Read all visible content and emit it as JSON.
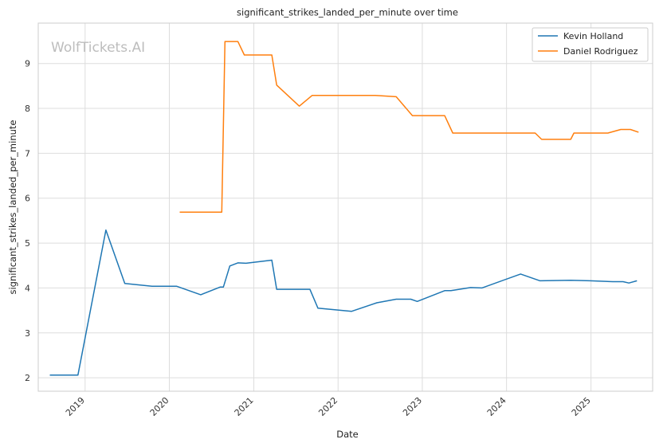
{
  "chart_data": {
    "type": "line",
    "title": "significant_strikes_landed_per_minute over time",
    "xlabel": "Date",
    "ylabel": "significant_strikes_landed_per_minute",
    "watermark": "WolfTickets.AI",
    "x_ticks": [
      "2019",
      "2020",
      "2021",
      "2022",
      "2023",
      "2024",
      "2025"
    ],
    "y_ticks": [
      2,
      3,
      4,
      5,
      6,
      7,
      8,
      9
    ],
    "xlim": [
      "2018-06-12",
      "2025-09-25"
    ],
    "ylim": [
      1.7,
      9.9
    ],
    "grid": true,
    "legend_position": "top-right",
    "series": [
      {
        "name": "Kevin Holland",
        "color": "#1f77b4",
        "points": [
          [
            "2018-08-01",
            2.06
          ],
          [
            "2018-12-01",
            2.06
          ],
          [
            "2019-04-01",
            5.29
          ],
          [
            "2019-06-22",
            4.1
          ],
          [
            "2019-10-18",
            4.04
          ],
          [
            "2020-02-01",
            4.04
          ],
          [
            "2020-05-16",
            3.85
          ],
          [
            "2020-08-08",
            4.02
          ],
          [
            "2020-08-22",
            4.02
          ],
          [
            "2020-09-19",
            4.49
          ],
          [
            "2020-10-24",
            4.56
          ],
          [
            "2020-11-28",
            4.55
          ],
          [
            "2021-03-20",
            4.62
          ],
          [
            "2021-04-10",
            3.97
          ],
          [
            "2021-09-01",
            3.97
          ],
          [
            "2021-10-06",
            3.55
          ],
          [
            "2022-03-01",
            3.48
          ],
          [
            "2022-06-18",
            3.67
          ],
          [
            "2022-09-10",
            3.75
          ],
          [
            "2022-11-12",
            3.75
          ],
          [
            "2022-12-10",
            3.7
          ],
          [
            "2023-04-08",
            3.94
          ],
          [
            "2023-05-05",
            3.94
          ],
          [
            "2023-07-29",
            4.01
          ],
          [
            "2023-09-16",
            4.0
          ],
          [
            "2024-03-02",
            4.31
          ],
          [
            "2024-05-25",
            4.16
          ],
          [
            "2024-10-05",
            4.17
          ],
          [
            "2024-12-28",
            4.16
          ],
          [
            "2025-04-05",
            4.14
          ],
          [
            "2025-05-20",
            4.14
          ],
          [
            "2025-06-14",
            4.11
          ],
          [
            "2025-07-19",
            4.16
          ]
        ]
      },
      {
        "name": "Daniel Rodriguez",
        "color": "#ff7f0e",
        "points": [
          [
            "2020-02-15",
            5.69
          ],
          [
            "2020-08-15",
            5.69
          ],
          [
            "2020-08-29",
            9.49
          ],
          [
            "2020-10-24",
            9.49
          ],
          [
            "2020-11-21",
            9.19
          ],
          [
            "2021-03-20",
            9.19
          ],
          [
            "2021-04-10",
            8.52
          ],
          [
            "2021-07-17",
            8.05
          ],
          [
            "2021-09-11",
            8.29
          ],
          [
            "2022-06-11",
            8.29
          ],
          [
            "2022-09-10",
            8.26
          ],
          [
            "2022-11-19",
            7.84
          ],
          [
            "2023-04-08",
            7.84
          ],
          [
            "2023-05-13",
            7.45
          ],
          [
            "2024-05-04",
            7.45
          ],
          [
            "2024-06-01",
            7.31
          ],
          [
            "2024-10-05",
            7.31
          ],
          [
            "2024-10-19",
            7.45
          ],
          [
            "2025-03-15",
            7.45
          ],
          [
            "2025-05-10",
            7.53
          ],
          [
            "2025-06-21",
            7.53
          ],
          [
            "2025-07-26",
            7.47
          ]
        ]
      }
    ]
  }
}
